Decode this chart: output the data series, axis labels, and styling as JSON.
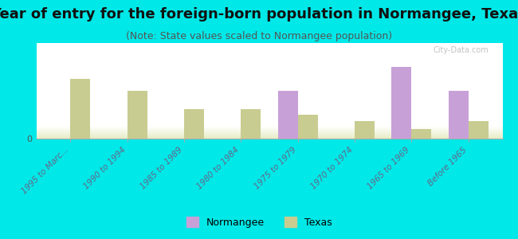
{
  "title": "Year of entry for the foreign-born population in Normangee, Texas",
  "subtitle": "(Note: State values scaled to Normangee population)",
  "categories": [
    "1995 to Marc...",
    "1990 to 1994",
    "1985 to 1989",
    "1980 to 1984",
    "1975 to 1979",
    "1970 to 1974",
    "1965 to 1969",
    "Before 1965"
  ],
  "normangee_values": [
    0,
    0,
    0,
    0,
    4,
    0,
    6,
    4
  ],
  "texas_values": [
    5,
    4,
    2.5,
    2.5,
    2,
    1.5,
    0.8,
    1.5
  ],
  "normangee_color": "#c8a0d8",
  "texas_color": "#c8cc90",
  "background_color": "#00e8e8",
  "plot_bg_start": "#e8eec8",
  "plot_bg_end": "#ffffff",
  "title_fontsize": 13,
  "subtitle_fontsize": 9,
  "bar_width": 0.35,
  "watermark": "City-Data.com",
  "legend_normangee": "Normangee",
  "legend_texas": "Texas"
}
